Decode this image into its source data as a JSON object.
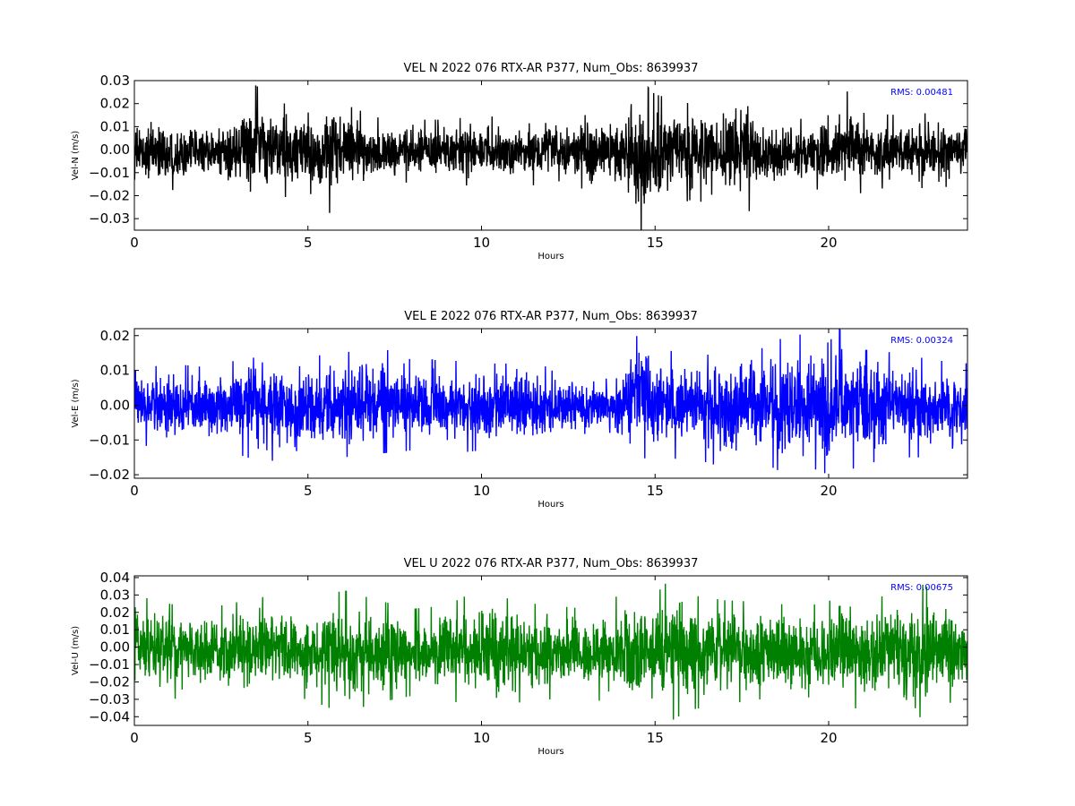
{
  "chart_data": [
    {
      "type": "line",
      "title": "VEL N 2022 076 RTX-AR  P377, Num_Obs: 8639937",
      "xlabel": "Hours",
      "ylabel": "Vel-N (m/s)",
      "annotation": "RMS:  0.00481",
      "annotation_color": "#0000ff",
      "color": "#000000",
      "xlim": [
        0,
        24
      ],
      "ylim": [
        -0.035,
        0.03
      ],
      "xticks": [
        0,
        5,
        10,
        15,
        20
      ],
      "xtick_labels": [
        "0",
        "5",
        "10",
        "15",
        "20"
      ],
      "yticks": [
        0.03,
        0.02,
        0.01,
        0.0,
        -0.01,
        -0.02,
        -0.03
      ],
      "ytick_labels": [
        "0.03",
        "0.02",
        "0.01",
        "0.00",
        "−0.01",
        "−0.02",
        "−0.03"
      ],
      "envelope": {
        "hours": [
          0,
          1,
          2,
          3,
          3.5,
          4,
          5,
          5.6,
          6,
          7,
          8,
          9,
          10,
          11,
          12,
          13,
          14,
          14.6,
          15,
          16,
          17,
          17.7,
          18,
          19,
          20,
          20.5,
          21,
          22,
          23,
          24
        ],
        "upper": [
          0.014,
          0.016,
          0.012,
          0.018,
          0.028,
          0.022,
          0.016,
          0.026,
          0.02,
          0.014,
          0.013,
          0.013,
          0.015,
          0.013,
          0.015,
          0.015,
          0.018,
          0.03,
          0.024,
          0.02,
          0.022,
          0.029,
          0.018,
          0.013,
          0.015,
          0.026,
          0.016,
          0.015,
          0.016,
          0.015
        ],
        "lower": [
          -0.017,
          -0.018,
          -0.014,
          -0.02,
          -0.026,
          -0.022,
          -0.018,
          -0.028,
          -0.02,
          -0.016,
          -0.014,
          -0.015,
          -0.016,
          -0.015,
          -0.016,
          -0.017,
          -0.02,
          -0.035,
          -0.028,
          -0.022,
          -0.024,
          -0.027,
          -0.02,
          -0.016,
          -0.018,
          -0.024,
          -0.018,
          -0.016,
          -0.017,
          -0.015
        ]
      }
    },
    {
      "type": "line",
      "title": "VEL E 2022 076 RTX-AR  P377, Num_Obs: 8639937",
      "xlabel": "Hours",
      "ylabel": "Vel-E (m/s)",
      "annotation": "RMS:  0.00324",
      "annotation_color": "#0000ff",
      "color": "#0000ff",
      "xlim": [
        0,
        24
      ],
      "ylim": [
        -0.021,
        0.022
      ],
      "xticks": [
        0,
        5,
        10,
        15,
        20
      ],
      "xtick_labels": [
        "0",
        "5",
        "10",
        "15",
        "20"
      ],
      "yticks": [
        0.02,
        0.01,
        0.0,
        -0.01,
        -0.02
      ],
      "ytick_labels": [
        "0.02",
        "0.01",
        "0.00",
        "−0.01",
        "−0.02"
      ],
      "envelope": {
        "hours": [
          0,
          1,
          2,
          3,
          3.2,
          4,
          5,
          6,
          7,
          8,
          9,
          10,
          11,
          12,
          13,
          13.5,
          14,
          14.6,
          15,
          16,
          17,
          18,
          19,
          19.5,
          20,
          20.3,
          21,
          22,
          23,
          24
        ],
        "upper": [
          0.01,
          0.012,
          0.011,
          0.013,
          0.018,
          0.016,
          0.014,
          0.015,
          0.017,
          0.013,
          0.013,
          0.012,
          0.012,
          0.011,
          0.01,
          0.009,
          0.012,
          0.022,
          0.017,
          0.014,
          0.015,
          0.016,
          0.021,
          0.019,
          0.018,
          0.022,
          0.016,
          0.015,
          0.013,
          0.012
        ],
        "lower": [
          -0.011,
          -0.013,
          -0.012,
          -0.014,
          -0.015,
          -0.016,
          -0.016,
          -0.015,
          -0.014,
          -0.013,
          -0.014,
          -0.013,
          -0.013,
          -0.012,
          -0.011,
          -0.01,
          -0.013,
          -0.015,
          -0.016,
          -0.015,
          -0.018,
          -0.016,
          -0.021,
          -0.018,
          -0.02,
          -0.02,
          -0.017,
          -0.015,
          -0.015,
          -0.014
        ]
      }
    },
    {
      "type": "line",
      "title": "VEL U 2022 076 RTX-AR  P377, Num_Obs: 8639937",
      "xlabel": "Hours",
      "ylabel": "Vel-U (m/s)",
      "annotation": "RMS:  0.00675",
      "annotation_color": "#0000ff",
      "color": "#008000",
      "xlim": [
        0,
        24
      ],
      "ylim": [
        -0.045,
        0.041
      ],
      "xticks": [
        0,
        5,
        10,
        15,
        20
      ],
      "xtick_labels": [
        "0",
        "5",
        "10",
        "15",
        "20"
      ],
      "yticks": [
        0.04,
        0.03,
        0.02,
        0.01,
        0.0,
        -0.01,
        -0.02,
        -0.03,
        -0.04
      ],
      "ytick_labels": [
        "0.04",
        "0.03",
        "0.02",
        "0.01",
        "0.00",
        "−0.01",
        "−0.02",
        "−0.03",
        "−0.04"
      ],
      "envelope": {
        "hours": [
          0,
          1,
          2,
          3,
          4,
          5,
          6,
          7,
          8,
          9,
          10,
          10.5,
          11,
          12,
          13,
          14,
          14.5,
          15,
          15.5,
          16,
          17,
          18,
          19,
          20,
          20.3,
          21,
          22,
          22.3,
          23,
          24
        ],
        "upper": [
          0.03,
          0.025,
          0.022,
          0.026,
          0.03,
          0.022,
          0.033,
          0.027,
          0.022,
          0.024,
          0.034,
          0.03,
          0.026,
          0.024,
          0.022,
          0.03,
          0.035,
          0.03,
          0.041,
          0.03,
          0.027,
          0.026,
          0.024,
          0.025,
          0.041,
          0.026,
          0.032,
          0.04,
          0.033,
          0.025
        ],
        "lower": [
          -0.025,
          -0.03,
          -0.028,
          -0.032,
          -0.028,
          -0.03,
          -0.038,
          -0.032,
          -0.028,
          -0.03,
          -0.036,
          -0.035,
          -0.032,
          -0.03,
          -0.028,
          -0.035,
          -0.036,
          -0.035,
          -0.042,
          -0.036,
          -0.033,
          -0.03,
          -0.033,
          -0.036,
          -0.04,
          -0.033,
          -0.035,
          -0.046,
          -0.034,
          -0.03
        ]
      }
    }
  ]
}
